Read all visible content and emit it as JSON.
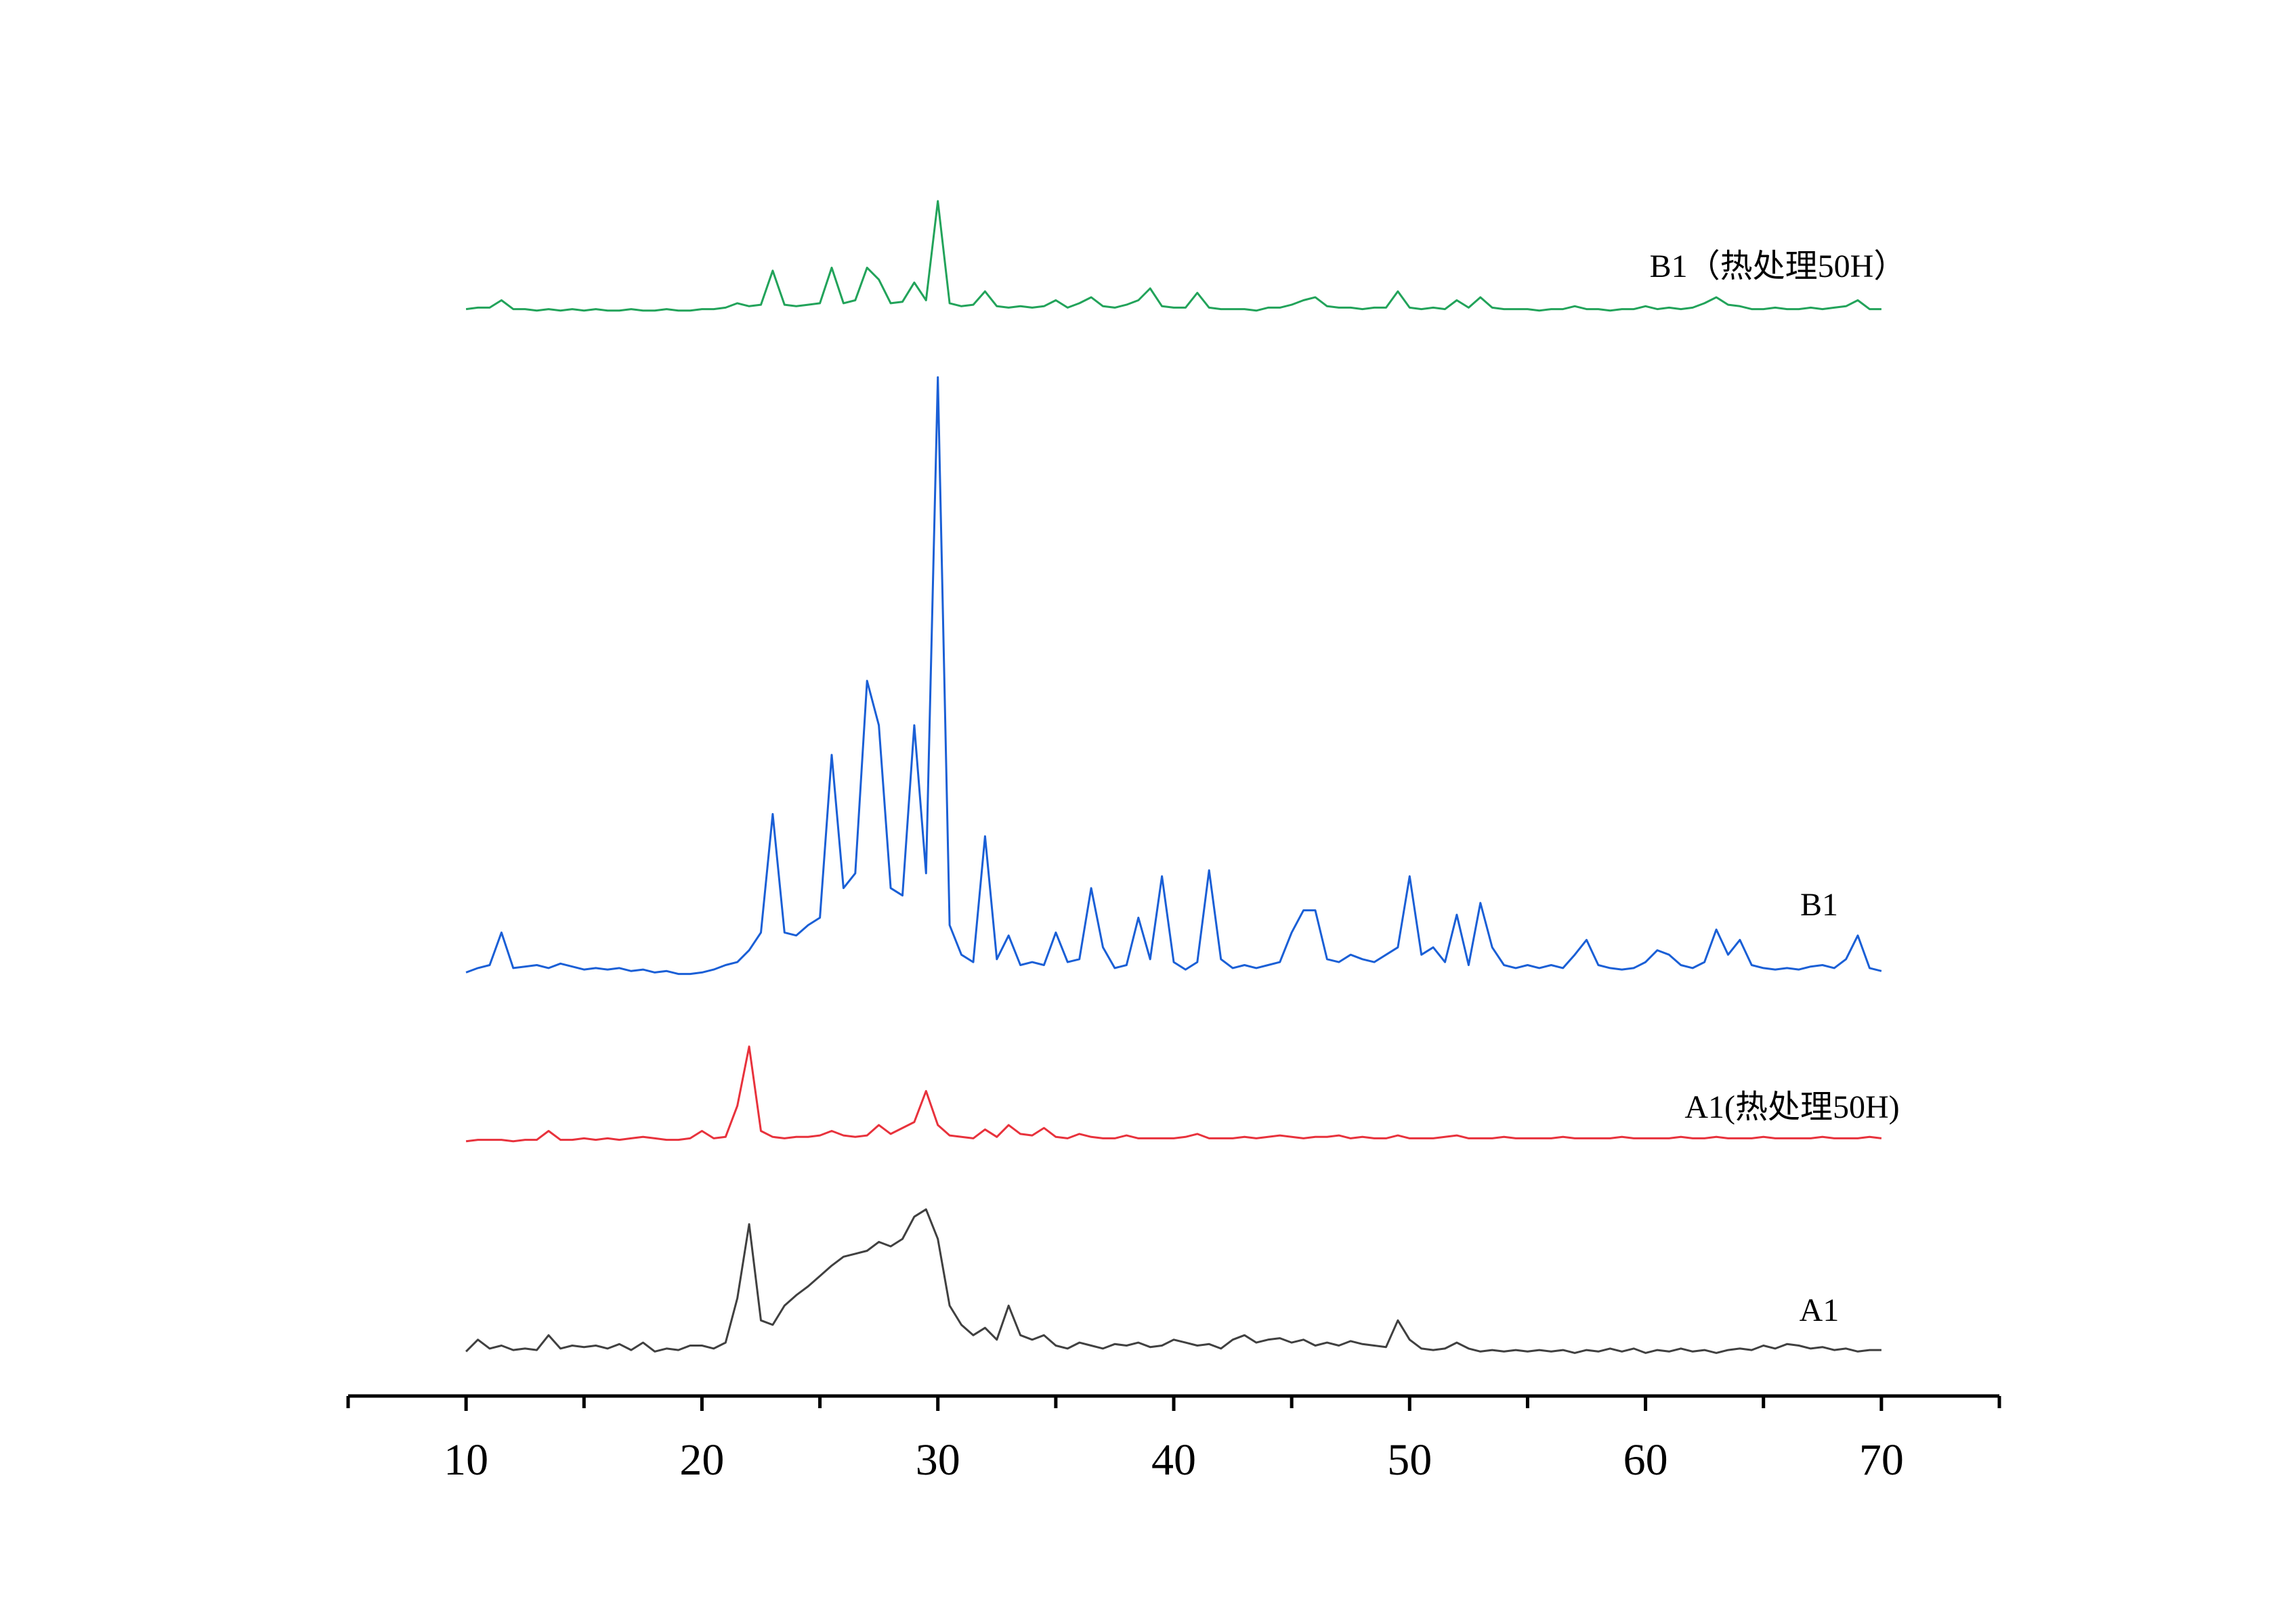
{
  "chart_data": {
    "type": "line",
    "xlim": [
      5,
      75
    ],
    "xticks": [
      10,
      20,
      30,
      40,
      50,
      60,
      70
    ],
    "xminorticks": [
      5,
      15,
      25,
      35,
      45,
      55,
      65,
      75
    ],
    "x": [
      10,
      10.5,
      11,
      11.5,
      12,
      12.5,
      13,
      13.5,
      14,
      14.5,
      15,
      15.5,
      16,
      16.5,
      17,
      17.5,
      18,
      18.5,
      19,
      19.5,
      20,
      20.5,
      21,
      21.5,
      22,
      22.5,
      23,
      23.5,
      24,
      24.5,
      25,
      25.5,
      26,
      26.5,
      27,
      27.5,
      28,
      28.5,
      29,
      29.5,
      30,
      30.5,
      31,
      31.5,
      32,
      32.5,
      33,
      33.5,
      34,
      34.5,
      35,
      35.5,
      36,
      36.5,
      37,
      37.5,
      38,
      38.5,
      39,
      39.5,
      40,
      40.5,
      41,
      41.5,
      42,
      42.5,
      43,
      43.5,
      44,
      44.5,
      45,
      45.5,
      46,
      46.5,
      47,
      47.5,
      48,
      48.5,
      49,
      49.5,
      50,
      50.5,
      51,
      51.5,
      52,
      52.5,
      53,
      53.5,
      54,
      54.5,
      55,
      55.5,
      56,
      56.5,
      57,
      57.5,
      58,
      58.5,
      59,
      59.5,
      60,
      60.5,
      61,
      61.5,
      62,
      62.5,
      63,
      63.5,
      64,
      64.5,
      65,
      65.5,
      66,
      66.5,
      67,
      67.5,
      68,
      68.5,
      69,
      69.5,
      70
    ],
    "series": [
      {
        "name": "B1（热处理50H）",
        "color": "#22a35a",
        "values": [
          2,
          3,
          3,
          8,
          2,
          2,
          1,
          2,
          1,
          2,
          1,
          2,
          1,
          1,
          2,
          1,
          1,
          2,
          1,
          1,
          2,
          2,
          3,
          6,
          4,
          5,
          28,
          5,
          4,
          5,
          6,
          30,
          6,
          8,
          30,
          22,
          6,
          7,
          20,
          8,
          75,
          6,
          4,
          5,
          14,
          4,
          3,
          4,
          3,
          4,
          8,
          3,
          6,
          10,
          4,
          3,
          5,
          8,
          16,
          4,
          3,
          3,
          13,
          3,
          2,
          2,
          2,
          1,
          3,
          3,
          5,
          8,
          10,
          4,
          3,
          3,
          2,
          3,
          3,
          14,
          3,
          2,
          3,
          2,
          8,
          3,
          10,
          3,
          2,
          2,
          2,
          1,
          2,
          2,
          4,
          2,
          2,
          1,
          2,
          2,
          4,
          2,
          3,
          2,
          3,
          6,
          10,
          5,
          4,
          2,
          2,
          3,
          2,
          2,
          3,
          2,
          3,
          4,
          8,
          2,
          2
        ]
      },
      {
        "name": "B1",
        "color": "#1a5fd6",
        "values": [
          3,
          6,
          8,
          30,
          6,
          7,
          8,
          6,
          9,
          7,
          5,
          6,
          5,
          6,
          4,
          5,
          3,
          4,
          2,
          2,
          3,
          5,
          8,
          10,
          18,
          30,
          110,
          30,
          28,
          35,
          40,
          150,
          60,
          70,
          200,
          170,
          60,
          55,
          170,
          70,
          405,
          35,
          15,
          10,
          95,
          12,
          28,
          8,
          10,
          8,
          30,
          10,
          12,
          60,
          20,
          6,
          8,
          40,
          12,
          68,
          10,
          5,
          10,
          72,
          12,
          6,
          8,
          6,
          8,
          10,
          30,
          45,
          45,
          12,
          10,
          15,
          12,
          10,
          15,
          20,
          68,
          15,
          20,
          10,
          42,
          8,
          50,
          20,
          8,
          6,
          8,
          6,
          8,
          6,
          15,
          25,
          8,
          6,
          5,
          6,
          10,
          18,
          15,
          8,
          6,
          10,
          32,
          15,
          25,
          8,
          6,
          5,
          6,
          5,
          7,
          8,
          6,
          12,
          28,
          6,
          4
        ]
      },
      {
        "name": "A1(热处理50H)",
        "color": "#e8323c",
        "values": [
          1,
          2,
          2,
          2,
          1,
          2,
          2,
          8,
          2,
          2,
          3,
          2,
          3,
          2,
          3,
          4,
          3,
          2,
          2,
          3,
          8,
          3,
          4,
          25,
          65,
          8,
          4,
          3,
          4,
          4,
          5,
          8,
          5,
          4,
          5,
          12,
          6,
          10,
          14,
          35,
          12,
          5,
          4,
          3,
          9,
          4,
          12,
          6,
          5,
          10,
          4,
          3,
          6,
          4,
          3,
          3,
          5,
          3,
          3,
          3,
          3,
          4,
          6,
          3,
          3,
          3,
          4,
          3,
          4,
          5,
          4,
          3,
          4,
          4,
          5,
          3,
          4,
          3,
          3,
          5,
          3,
          3,
          3,
          4,
          5,
          3,
          3,
          3,
          4,
          3,
          3,
          3,
          3,
          4,
          3,
          3,
          3,
          3,
          4,
          3,
          3,
          3,
          3,
          4,
          3,
          3,
          4,
          3,
          3,
          3,
          4,
          3,
          3,
          3,
          3,
          4,
          3,
          3,
          3,
          4,
          3
        ]
      },
      {
        "name": "A1",
        "color": "#404040",
        "values": [
          4,
          12,
          6,
          8,
          5,
          6,
          5,
          15,
          6,
          8,
          7,
          8,
          6,
          9,
          5,
          10,
          4,
          6,
          5,
          8,
          8,
          6,
          10,
          40,
          90,
          25,
          22,
          35,
          42,
          48,
          55,
          62,
          68,
          70,
          72,
          78,
          75,
          80,
          95,
          100,
          80,
          35,
          22,
          15,
          20,
          12,
          35,
          15,
          12,
          15,
          8,
          6,
          10,
          8,
          6,
          9,
          8,
          10,
          7,
          8,
          12,
          10,
          8,
          9,
          6,
          12,
          15,
          10,
          12,
          13,
          10,
          12,
          8,
          10,
          8,
          11,
          9,
          8,
          7,
          25,
          12,
          6,
          5,
          6,
          10,
          6,
          4,
          5,
          4,
          5,
          4,
          5,
          4,
          5,
          3,
          5,
          4,
          6,
          4,
          6,
          3,
          5,
          4,
          6,
          4,
          5,
          3,
          5,
          6,
          5,
          8,
          6,
          9,
          8,
          6,
          7,
          5,
          6,
          4,
          5,
          5
        ]
      }
    ]
  }
}
